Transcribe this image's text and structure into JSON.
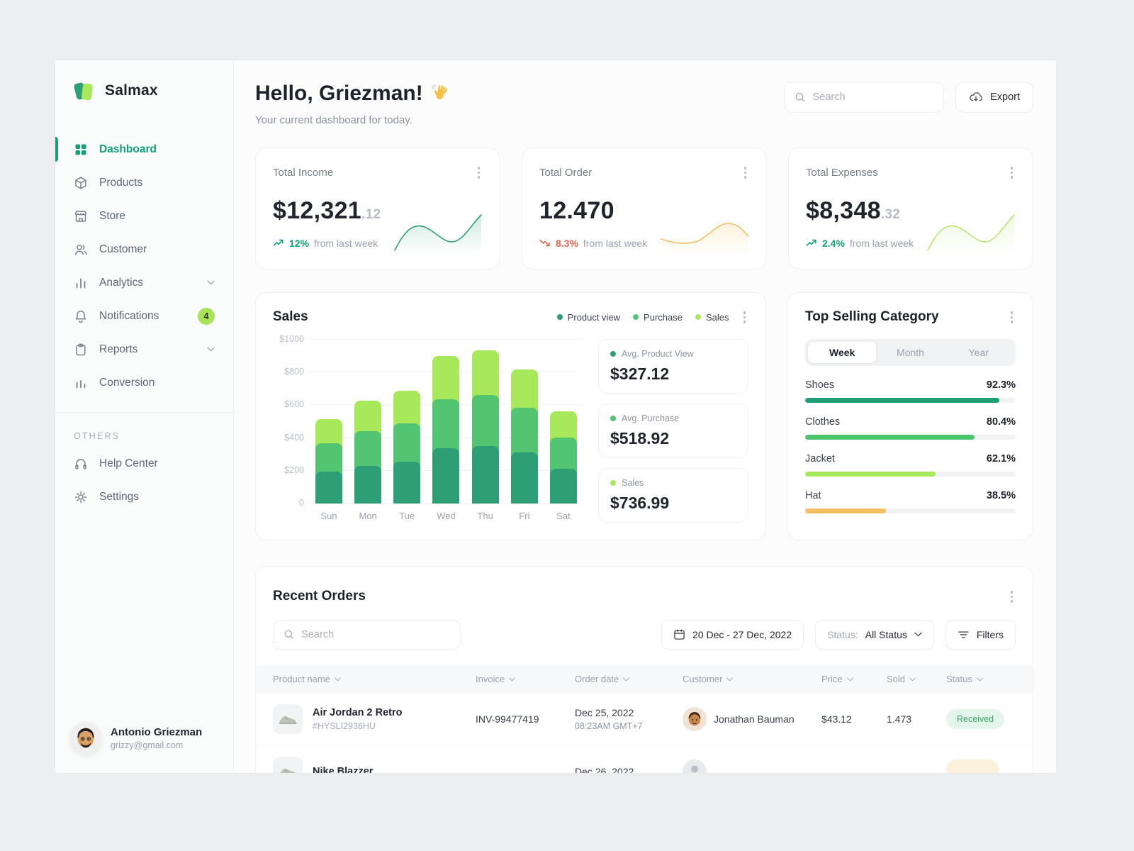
{
  "app": {
    "brand": "Salmax"
  },
  "sidebar": {
    "items": [
      {
        "label": "Dashboard",
        "icon": "grid-icon",
        "active": true
      },
      {
        "label": "Products",
        "icon": "cube-icon"
      },
      {
        "label": "Store",
        "icon": "storefront-icon"
      },
      {
        "label": "Customer",
        "icon": "customer-icon"
      },
      {
        "label": "Analytics",
        "icon": "analytics-icon",
        "chevron": true
      },
      {
        "label": "Notifications",
        "icon": "bell-icon",
        "badge": "4"
      },
      {
        "label": "Reports",
        "icon": "clipboard-icon",
        "chevron": true
      },
      {
        "label": "Conversion",
        "icon": "conversion-icon"
      }
    ],
    "others_label": "OTHERS",
    "other_items": [
      {
        "label": "Help Center",
        "icon": "headset-icon"
      },
      {
        "label": "Settings",
        "icon": "gear-icon"
      }
    ],
    "user": {
      "name": "Antonio Griezman",
      "email": "grizzy@gmail.com"
    }
  },
  "header": {
    "greeting": "Hello, Griezman!",
    "greeting_emoji": "👋",
    "subtitle": "Your current dashboard for today.",
    "search_placeholder": "Search",
    "export_label": "Export"
  },
  "stat_cards": [
    {
      "title": "Total Income",
      "value_main": "$12,321",
      "value_decimal": ".12",
      "trend": "up",
      "trend_value": "12%",
      "trend_note": "from last week",
      "spark_color": "#2E9E77"
    },
    {
      "title": "Total Order",
      "value_main": "12.470",
      "value_decimal": "",
      "trend": "down",
      "trend_value": "8.3%",
      "trend_note": "from last week",
      "spark_color": "#F2C063"
    },
    {
      "title": "Total Expenses",
      "value_main": "$8,348",
      "value_decimal": ".32",
      "trend": "up",
      "trend_value": "2.4%",
      "trend_note": "from last week",
      "spark_color": "#B5E873"
    }
  ],
  "sales": {
    "title": "Sales",
    "stats": [
      {
        "label": "Avg. Product View",
        "value": "$327.12",
        "color": "#2E9E77"
      },
      {
        "label": "Avg. Purchase",
        "value": "$518.92",
        "color": "#53C471"
      },
      {
        "label": "Sales",
        "value": "$736.99",
        "color": "#A8E95C"
      }
    ]
  },
  "chart_data": {
    "type": "bar",
    "stacked": true,
    "title": "Sales",
    "categories": [
      "Sun",
      "Mon",
      "Tue",
      "Wed",
      "Thu",
      "Fri",
      "Sat"
    ],
    "series": [
      {
        "name": "Product view",
        "color": "#2E9E77",
        "values": [
          195,
          230,
          255,
          335,
          350,
          310,
          210
        ]
      },
      {
        "name": "Purchase",
        "color": "#53C471",
        "values": [
          170,
          210,
          230,
          300,
          310,
          270,
          190
        ]
      },
      {
        "name": "Sales",
        "color": "#A8E95C",
        "values": [
          150,
          185,
          200,
          260,
          270,
          235,
          160
        ]
      }
    ],
    "y_ticks": [
      "$1000",
      "$800",
      "$600",
      "$400",
      "$200",
      "0"
    ],
    "ylim": [
      0,
      1000
    ],
    "xlabel": "",
    "ylabel": "",
    "grid": true,
    "legend_position": "top-right"
  },
  "top_selling": {
    "title": "Top Selling Category",
    "tabs": [
      {
        "label": "Week",
        "active": true
      },
      {
        "label": "Month",
        "active": false
      },
      {
        "label": "Year",
        "active": false
      }
    ],
    "categories": [
      {
        "label": "Shoes",
        "percent": 92.3,
        "display": "92.3%",
        "color": "#1F9D74"
      },
      {
        "label": "Clothes",
        "percent": 80.4,
        "display": "80.4%",
        "color": "#4CC46E"
      },
      {
        "label": "Jacket",
        "percent": 62.1,
        "display": "62.1%",
        "color": "#A7E95C"
      },
      {
        "label": "Hat",
        "percent": 38.5,
        "display": "38.5%",
        "color": "#F4BE63"
      }
    ]
  },
  "orders": {
    "title": "Recent Orders",
    "search_placeholder": "Search",
    "date_range": "20 Dec - 27 Dec, 2022",
    "status_label": "Status:",
    "status_value": "All Status",
    "filters_label": "Filters",
    "columns": [
      "Product name",
      "Invoice",
      "Order date",
      "Customer",
      "Price",
      "Sold",
      "Status"
    ],
    "rows": [
      {
        "product_name": "Air Jordan 2 Retro",
        "product_sku": "#HYSLI2936HU",
        "product_image": "sneaker-thumbnail",
        "invoice": "INV-99477419",
        "order_date": "Dec 25, 2022",
        "order_time": "08:23AM GMT+7",
        "customer": "Jonathan Bauman",
        "customer_avatar": "man-memoji",
        "price": "$43.12",
        "sold": "1.473",
        "status": "Received",
        "status_color": "green"
      },
      {
        "product_name": "Nike Blazzer",
        "product_sku": "",
        "product_image": "sneaker-thumbnail",
        "invoice": "",
        "order_date": "Dec 26, 2022",
        "order_time": "",
        "customer": "",
        "customer_avatar": "person",
        "price": "",
        "sold": "",
        "status": "",
        "status_color": "orange"
      }
    ]
  }
}
